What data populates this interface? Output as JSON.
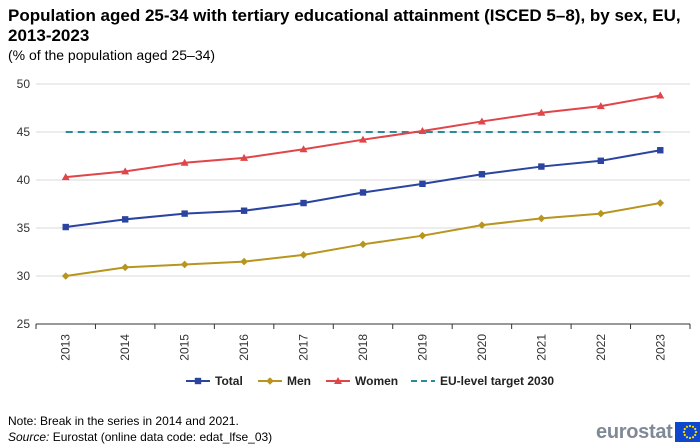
{
  "header": {
    "title": "Population aged 25-34 with tertiary educational attainment (ISCED 5–8), by sex, EU, 2013-2023",
    "subtitle": "(% of the population  aged 25–34)"
  },
  "footer": {
    "note": "Note: Break in the series in 2014 and 2021.",
    "source_label": "Source:",
    "source_text": " Eurostat (online data code: edat_lfse_03)",
    "logo_text": "eurostat"
  },
  "chart_data": {
    "type": "line",
    "x": [
      "2013",
      "2014",
      "2015",
      "2016",
      "2017",
      "2018",
      "2019",
      "2020",
      "2021",
      "2022",
      "2023"
    ],
    "series": [
      {
        "name": "Total",
        "color": "#2a44a0",
        "marker": "square",
        "values": [
          35.1,
          35.9,
          36.5,
          36.8,
          37.6,
          38.7,
          39.6,
          40.6,
          41.4,
          42.0,
          43.1
        ]
      },
      {
        "name": "Men",
        "color": "#b8951f",
        "marker": "diamond",
        "values": [
          30.0,
          30.9,
          31.2,
          31.5,
          32.2,
          33.3,
          34.2,
          35.3,
          36.0,
          36.5,
          37.6
        ]
      },
      {
        "name": "Women",
        "color": "#e0454a",
        "marker": "triangle",
        "values": [
          40.3,
          40.9,
          41.8,
          42.3,
          43.2,
          44.2,
          45.1,
          46.1,
          47.0,
          47.7,
          48.8
        ]
      },
      {
        "name": "EU-level target 2030",
        "color": "#2a8b9c",
        "marker": "dashed",
        "values": [
          45,
          45,
          45,
          45,
          45,
          45,
          45,
          45,
          45,
          45,
          45
        ]
      }
    ],
    "ylim": [
      25,
      50
    ],
    "yticks": [
      25,
      30,
      35,
      40,
      45,
      50
    ],
    "grid": true,
    "legend_position": "bottom"
  }
}
